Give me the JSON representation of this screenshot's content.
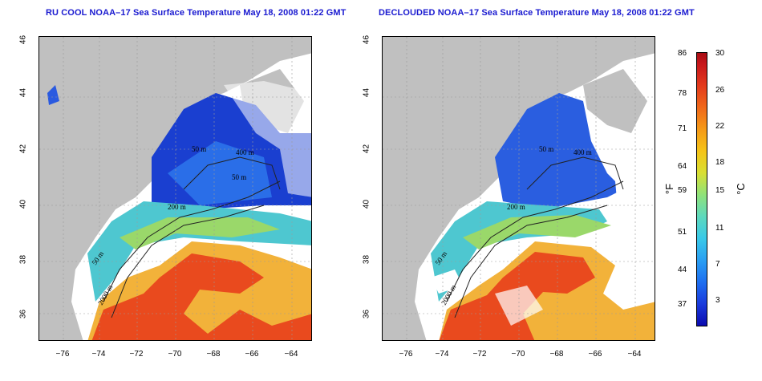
{
  "left_panel": {
    "title": "RU COOL NOAA–17 Sea Surface Temperature May 18, 2008 01:22 GMT",
    "contour_labels": [
      "50 m",
      "50 m",
      "400 m",
      "200 m",
      "50 m",
      "2000 m"
    ]
  },
  "right_panel": {
    "title": "DECLOUDED NOAA–17 Sea Surface Temperature May 18, 2008 01:22 GMT",
    "contour_labels": [
      "50 m",
      "400 m",
      "200 m",
      "50 m",
      "2000 m"
    ]
  },
  "axes": {
    "lat_ticks": [
      "46",
      "44",
      "42",
      "40",
      "38",
      "36"
    ],
    "lon_ticks": [
      "−76",
      "−74",
      "−72",
      "−70",
      "−68",
      "−66",
      "−64"
    ]
  },
  "colorbar": {
    "fahrenheit_ticks": [
      "86",
      "78",
      "71",
      "64",
      "59",
      "51",
      "44",
      "37"
    ],
    "celsius_ticks": [
      "30",
      "26",
      "22",
      "18",
      "15",
      "11",
      "7",
      "3"
    ],
    "fahrenheit_unit": "°F",
    "celsius_unit": "°C"
  },
  "colors": {
    "land": "#c0c0c0",
    "cloud": "#ffffff",
    "cold": "#1030c8",
    "warm": "#e8401c",
    "title": "#1a1ad0"
  }
}
